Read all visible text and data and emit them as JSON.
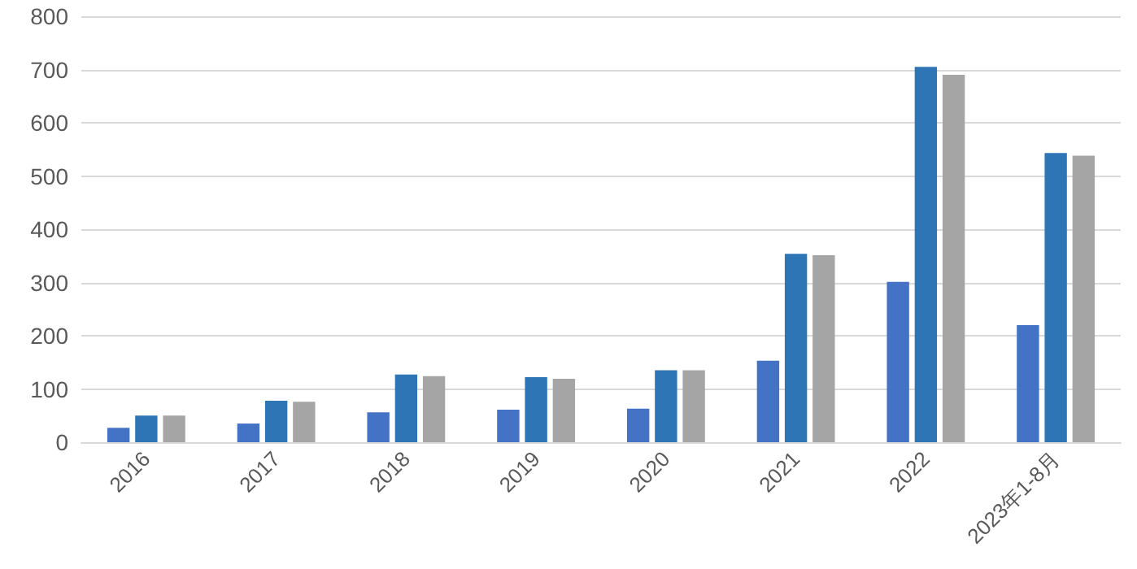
{
  "chart_data": {
    "type": "bar",
    "categories": [
      "2016",
      "2017",
      "2018",
      "2019",
      "2020",
      "2021",
      "2022",
      "2023年1-8月"
    ],
    "series": [
      {
        "color": "#4472c4",
        "values": [
          27,
          35,
          56,
          61,
          63,
          153,
          301,
          220
        ]
      },
      {
        "color": "#2e75b6",
        "values": [
          50,
          78,
          127,
          122,
          135,
          354,
          705,
          543
        ]
      },
      {
        "color": "#a5a5a5",
        "values": [
          50,
          76,
          124,
          119,
          135,
          351,
          690,
          538
        ]
      }
    ],
    "ylim": [
      0,
      800
    ],
    "yticks": [
      0,
      100,
      200,
      300,
      400,
      500,
      600,
      700,
      800
    ],
    "grid": "y"
  }
}
